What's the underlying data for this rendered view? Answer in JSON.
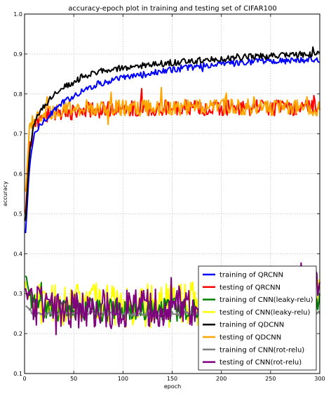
{
  "chart_data": {
    "type": "line",
    "title": "accuracy-epoch plot in training and testing set of CIFAR100",
    "xlabel": "epoch",
    "ylabel": "accuracy",
    "xlim": [
      0,
      300
    ],
    "ylim": [
      0.1,
      1.0
    ],
    "xticks": [
      "0",
      "50",
      "100",
      "150",
      "200",
      "250",
      "300"
    ],
    "yticks": [
      "0.1",
      "0.2",
      "0.3",
      "0.4",
      "0.5",
      "0.6",
      "0.7",
      "0.8",
      "0.9",
      "1.0"
    ],
    "grid": true,
    "legend_position": "lower-right",
    "series": [
      {
        "name": "training of QRCNN",
        "color": "#0000ff",
        "x": [
          1,
          5,
          10,
          20,
          30,
          40,
          50,
          60,
          75,
          100,
          125,
          150,
          175,
          200,
          225,
          250,
          275,
          300
        ],
        "values": [
          0.45,
          0.62,
          0.7,
          0.735,
          0.76,
          0.78,
          0.795,
          0.81,
          0.825,
          0.84,
          0.85,
          0.86,
          0.868,
          0.875,
          0.879,
          0.882,
          0.884,
          0.885
        ],
        "noise": 0.008
      },
      {
        "name": "testing of QRCNN",
        "color": "#ff0000",
        "x": [
          1,
          5,
          10,
          20,
          40,
          60,
          100,
          150,
          200,
          250,
          300
        ],
        "values": [
          0.5,
          0.66,
          0.72,
          0.74,
          0.75,
          0.76,
          0.765,
          0.765,
          0.765,
          0.765,
          0.765
        ],
        "noise": 0.02
      },
      {
        "name": "training of CNN(leaky-relu)",
        "color": "#008000",
        "x": [
          1,
          5,
          10,
          30,
          60,
          100,
          150,
          200,
          250,
          300
        ],
        "values": [
          0.34,
          0.31,
          0.27,
          0.26,
          0.26,
          0.26,
          0.26,
          0.265,
          0.27,
          0.28
        ],
        "noise": 0.03
      },
      {
        "name": "testing of CNN(leaky-relu)",
        "color": "#ffff00",
        "x": [
          1,
          5,
          10,
          30,
          60,
          100,
          150,
          200,
          250,
          300
        ],
        "values": [
          0.32,
          0.28,
          0.27,
          0.27,
          0.29,
          0.27,
          0.27,
          0.28,
          0.29,
          0.3
        ],
        "noise": 0.055
      },
      {
        "name": "training of QDCNN",
        "color": "#000000",
        "x": [
          1,
          5,
          10,
          20,
          30,
          40,
          50,
          60,
          75,
          100,
          125,
          150,
          175,
          200,
          225,
          250,
          275,
          300
        ],
        "values": [
          0.48,
          0.65,
          0.73,
          0.77,
          0.8,
          0.82,
          0.83,
          0.845,
          0.855,
          0.865,
          0.872,
          0.878,
          0.884,
          0.888,
          0.892,
          0.895,
          0.898,
          0.9
        ],
        "noise": 0.008
      },
      {
        "name": "testing of QDCNN",
        "color": "#ffa500",
        "x": [
          1,
          5,
          10,
          20,
          40,
          60,
          100,
          150,
          200,
          250,
          300
        ],
        "values": [
          0.55,
          0.71,
          0.74,
          0.755,
          0.76,
          0.765,
          0.765,
          0.765,
          0.77,
          0.765,
          0.765
        ],
        "noise": 0.02
      },
      {
        "name": "training of CNN(rot-relu)",
        "color": "#808080",
        "x": [
          1,
          10,
          50,
          100,
          150,
          200,
          250,
          300
        ],
        "values": [
          0.27,
          0.25,
          0.25,
          0.25,
          0.25,
          0.25,
          0.25,
          0.25
        ],
        "noise": 0.006
      },
      {
        "name": "testing of CNN(rot-relu)",
        "color": "#800080",
        "x": [
          1,
          5,
          10,
          30,
          60,
          100,
          150,
          200,
          250,
          300
        ],
        "values": [
          0.3,
          0.29,
          0.27,
          0.26,
          0.26,
          0.26,
          0.27,
          0.27,
          0.27,
          0.32
        ],
        "noise": 0.05
      }
    ]
  }
}
